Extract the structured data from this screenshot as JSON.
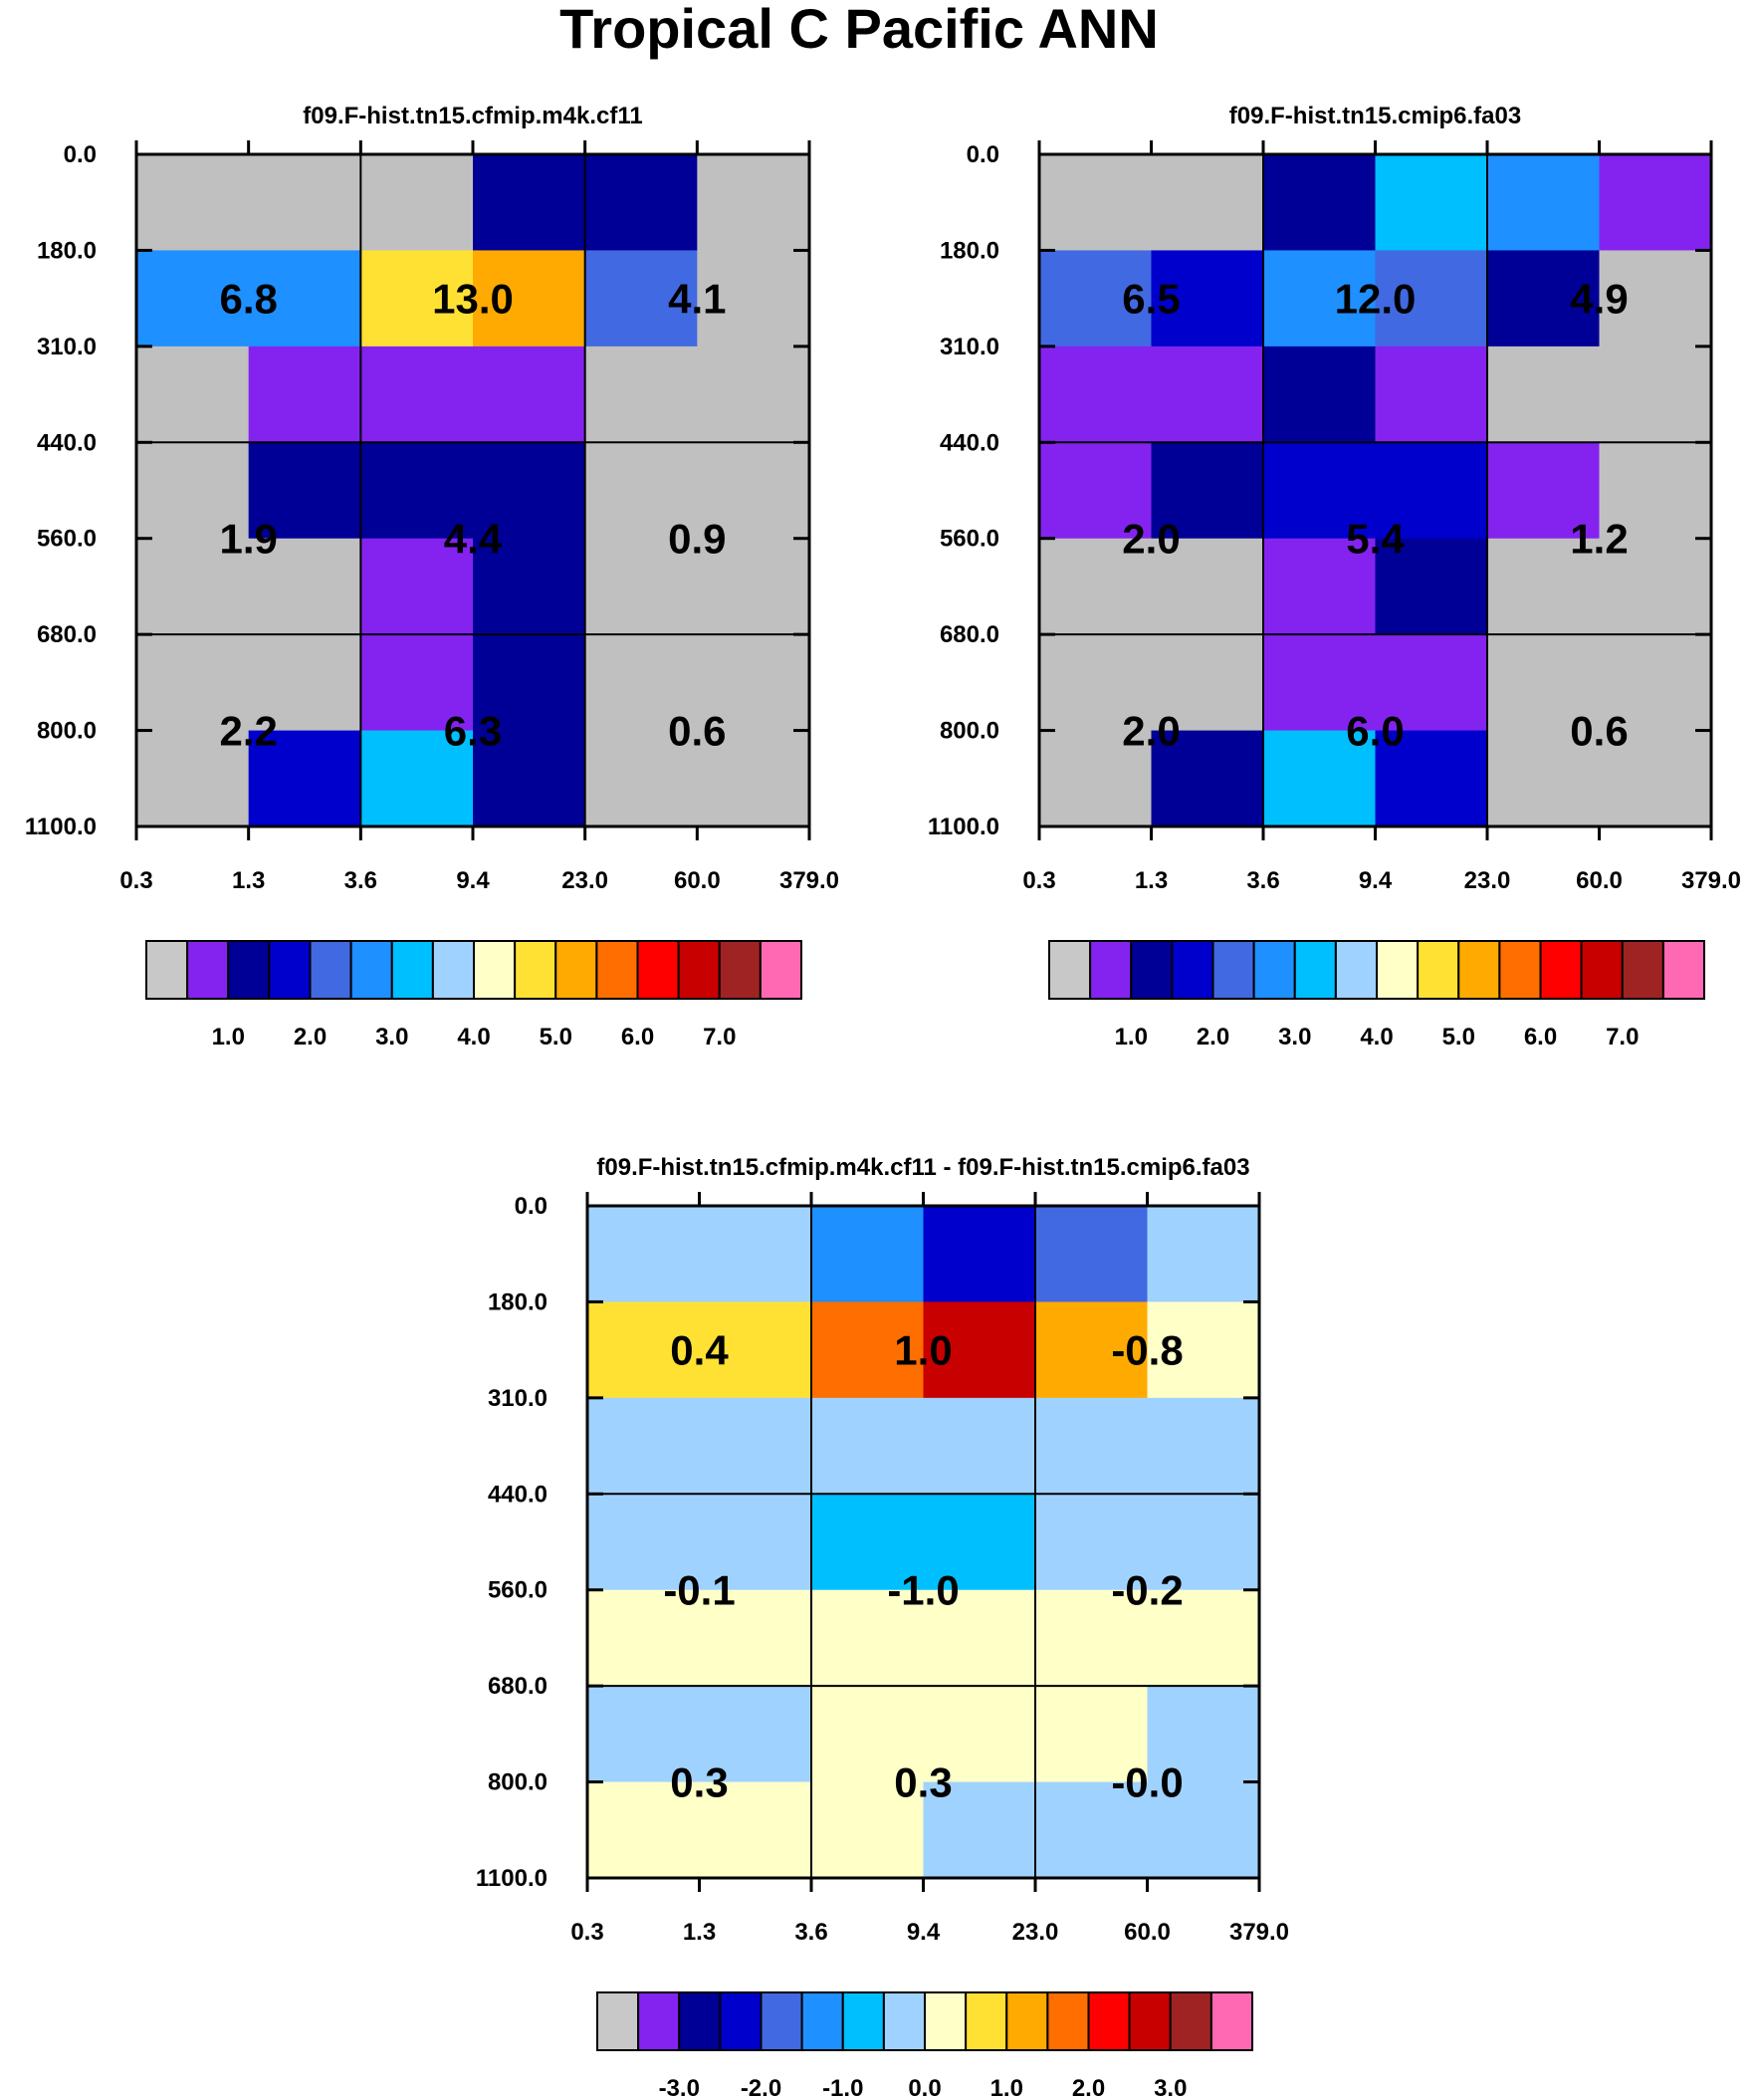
{
  "title": "Tropical C Pacific ANN",
  "chart_data": [
    {
      "type": "heatmap",
      "title": "f09.F-hist.tn15.cfmip.m4k.cf11",
      "x_ticks": [
        "0.3",
        "1.3",
        "3.6",
        "9.4",
        "23.0",
        "60.0",
        "379.0"
      ],
      "y_ticks": [
        "0.0",
        "180.0",
        "310.0",
        "440.0",
        "560.0",
        "680.0",
        "800.0",
        "1100.0"
      ],
      "cell_colors": [
        [
          "#c0c0c0",
          "#c0c0c0",
          "#c0c0c0",
          "#000096",
          "#000096",
          "#c0c0c0"
        ],
        [
          "#1e90ff",
          "#1e90ff",
          "#ffe133",
          "#ffaa00",
          "#4169e1",
          "#c0c0c0"
        ],
        [
          "#c0c0c0",
          "#8423f0",
          "#8423f0",
          "#8423f0",
          "#c0c0c0",
          "#c0c0c0"
        ],
        [
          "#c0c0c0",
          "#000096",
          "#000096",
          "#000096",
          "#c0c0c0",
          "#c0c0c0"
        ],
        [
          "#c0c0c0",
          "#c0c0c0",
          "#8423f0",
          "#000096",
          "#c0c0c0",
          "#c0c0c0"
        ],
        [
          "#c0c0c0",
          "#c0c0c0",
          "#8423f0",
          "#000096",
          "#c0c0c0",
          "#c0c0c0"
        ],
        [
          "#c0c0c0",
          "#0000cd",
          "#00bfff",
          "#000096",
          "#c0c0c0",
          "#c0c0c0"
        ]
      ],
      "box_values": [
        [
          "6.8",
          "13.0",
          "4.1"
        ],
        [
          "1.9",
          "4.4",
          "0.9"
        ],
        [
          "2.2",
          "6.3",
          "0.6"
        ]
      ],
      "colorbar": {
        "colors": [
          "#c8c8c8",
          "#8423f0",
          "#000096",
          "#0000cd",
          "#4169e1",
          "#1e90ff",
          "#00bfff",
          "#a0d2ff",
          "#ffffc8",
          "#ffe133",
          "#ffaa00",
          "#ff6e00",
          "#ff0000",
          "#c80000",
          "#a02323",
          "#ff69b4"
        ],
        "labels": [
          "1.0",
          "2.0",
          "3.0",
          "4.0",
          "5.0",
          "6.0",
          "7.0"
        ]
      }
    },
    {
      "type": "heatmap",
      "title": "f09.F-hist.tn15.cmip6.fa03",
      "x_ticks": [
        "0.3",
        "1.3",
        "3.6",
        "9.4",
        "23.0",
        "60.0",
        "379.0"
      ],
      "y_ticks": [
        "0.0",
        "180.0",
        "310.0",
        "440.0",
        "560.0",
        "680.0",
        "800.0",
        "1100.0"
      ],
      "cell_colors": [
        [
          "#c0c0c0",
          "#c0c0c0",
          "#000096",
          "#00bfff",
          "#1e90ff",
          "#8423f0"
        ],
        [
          "#4169e1",
          "#0000cd",
          "#1e90ff",
          "#4169e1",
          "#000096",
          "#c0c0c0"
        ],
        [
          "#8423f0",
          "#8423f0",
          "#000096",
          "#8423f0",
          "#c0c0c0",
          "#c0c0c0"
        ],
        [
          "#8423f0",
          "#000096",
          "#0000cd",
          "#0000cd",
          "#8423f0",
          "#c0c0c0"
        ],
        [
          "#c0c0c0",
          "#c0c0c0",
          "#8423f0",
          "#000096",
          "#c0c0c0",
          "#c0c0c0"
        ],
        [
          "#c0c0c0",
          "#c0c0c0",
          "#8423f0",
          "#8423f0",
          "#c0c0c0",
          "#c0c0c0"
        ],
        [
          "#c0c0c0",
          "#000096",
          "#00bfff",
          "#0000cd",
          "#c0c0c0",
          "#c0c0c0"
        ]
      ],
      "box_values": [
        [
          "6.5",
          "12.0",
          "4.9"
        ],
        [
          "2.0",
          "5.4",
          "1.2"
        ],
        [
          "2.0",
          "6.0",
          "0.6"
        ]
      ],
      "colorbar": {
        "colors": [
          "#c8c8c8",
          "#8423f0",
          "#000096",
          "#0000cd",
          "#4169e1",
          "#1e90ff",
          "#00bfff",
          "#a0d2ff",
          "#ffffc8",
          "#ffe133",
          "#ffaa00",
          "#ff6e00",
          "#ff0000",
          "#c80000",
          "#a02323",
          "#ff69b4"
        ],
        "labels": [
          "1.0",
          "2.0",
          "3.0",
          "4.0",
          "5.0",
          "6.0",
          "7.0"
        ]
      }
    },
    {
      "type": "heatmap",
      "title": "f09.F-hist.tn15.cfmip.m4k.cf11 - f09.F-hist.tn15.cmip6.fa03",
      "x_ticks": [
        "0.3",
        "1.3",
        "3.6",
        "9.4",
        "23.0",
        "60.0",
        "379.0"
      ],
      "y_ticks": [
        "0.0",
        "180.0",
        "310.0",
        "440.0",
        "560.0",
        "680.0",
        "800.0",
        "1100.0"
      ],
      "cell_colors": [
        [
          "#a0d2ff",
          "#a0d2ff",
          "#1e90ff",
          "#0000cd",
          "#4169e1",
          "#a0d2ff"
        ],
        [
          "#ffe133",
          "#ffe133",
          "#ff6e00",
          "#c80000",
          "#ffaa00",
          "#ffffc8"
        ],
        [
          "#a0d2ff",
          "#a0d2ff",
          "#a0d2ff",
          "#a0d2ff",
          "#a0d2ff",
          "#a0d2ff"
        ],
        [
          "#a0d2ff",
          "#a0d2ff",
          "#00bfff",
          "#00bfff",
          "#a0d2ff",
          "#a0d2ff"
        ],
        [
          "#ffffc8",
          "#ffffc8",
          "#ffffc8",
          "#ffffc8",
          "#ffffc8",
          "#ffffc8"
        ],
        [
          "#a0d2ff",
          "#a0d2ff",
          "#ffffc8",
          "#ffffc8",
          "#ffffc8",
          "#a0d2ff"
        ],
        [
          "#ffffc8",
          "#ffffc8",
          "#ffffc8",
          "#a0d2ff",
          "#a0d2ff",
          "#a0d2ff"
        ]
      ],
      "box_values": [
        [
          "0.4",
          "1.0",
          "-0.8"
        ],
        [
          "-0.1",
          "-1.0",
          "-0.2"
        ],
        [
          "0.3",
          "0.3",
          "-0.0"
        ]
      ],
      "colorbar": {
        "colors": [
          "#c8c8c8",
          "#8423f0",
          "#000096",
          "#0000cd",
          "#4169e1",
          "#1e90ff",
          "#00bfff",
          "#a0d2ff",
          "#ffffc8",
          "#ffe133",
          "#ffaa00",
          "#ff6e00",
          "#ff0000",
          "#c80000",
          "#a02323",
          "#ff69b4"
        ],
        "labels": [
          "-3.0",
          "-2.0",
          "-1.0",
          "0.0",
          "1.0",
          "2.0",
          "3.0"
        ]
      }
    }
  ]
}
